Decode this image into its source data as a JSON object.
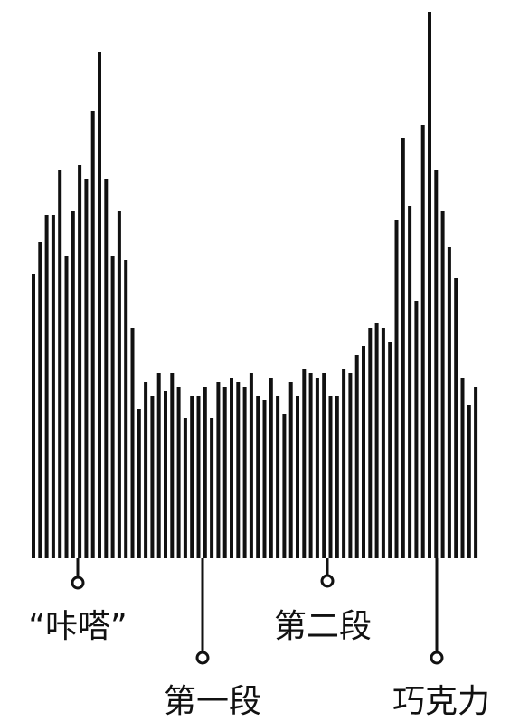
{
  "chart_data": {
    "type": "bar",
    "title": "",
    "xlabel": "",
    "ylabel": "",
    "grid": false,
    "legend": "none",
    "colors": {
      "bar": "#111111",
      "background": "#ffffff"
    },
    "ylim": [
      0,
      605
    ],
    "values": [
      315,
      350,
      380,
      380,
      430,
      335,
      385,
      435,
      420,
      495,
      560,
      420,
      335,
      385,
      330,
      255,
      165,
      195,
      180,
      205,
      185,
      205,
      190,
      155,
      180,
      180,
      190,
      155,
      195,
      190,
      200,
      195,
      190,
      205,
      180,
      175,
      200,
      180,
      160,
      195,
      180,
      210,
      205,
      200,
      205,
      180,
      180,
      210,
      205,
      225,
      235,
      255,
      260,
      255,
      240,
      375,
      465,
      390,
      285,
      480,
      605,
      430,
      385,
      345,
      310,
      200,
      170,
      190
    ],
    "annotations": [
      {
        "id": "kata",
        "text": "“咔嗒”",
        "bar_index": 7
      },
      {
        "id": "segment1",
        "text": "第一段",
        "bar_index": 23
      },
      {
        "id": "segment2",
        "text": "第二段",
        "bar_index": 40
      },
      {
        "id": "chocolate",
        "text": "巧克力",
        "bar_index": 60
      }
    ]
  }
}
